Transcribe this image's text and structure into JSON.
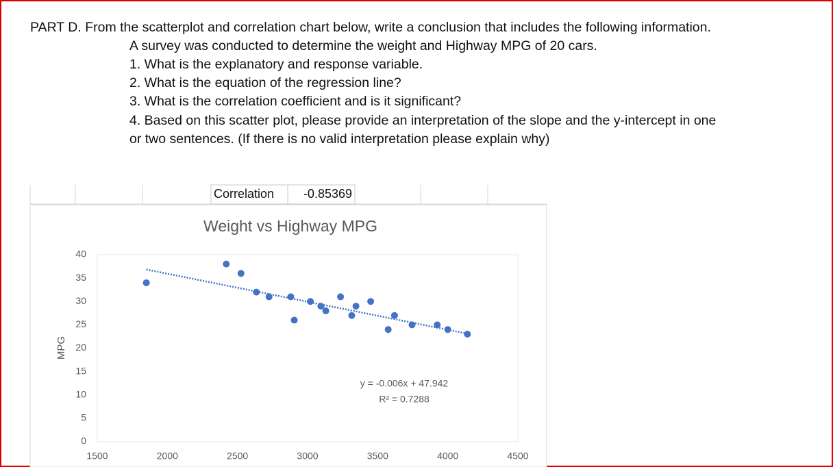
{
  "document": {
    "heading": "PART D. From the scatterplot and correlation chart below, write a conclusion that includes the following information.",
    "lines": [
      "A survey was conducted to determine the weight and Highway MPG of 20 cars.",
      "1. What is the explanatory and response variable.",
      "2. What is the equation of the regression line?",
      "3. What is the correlation coefficient and is it significant?",
      "4. Based on this scatter plot, please provide an interpretation of the slope and the y-intercept in one",
      "or two sentences. (If there is no valid interpretation please explain why)"
    ]
  },
  "correlation": {
    "label": "Correlation",
    "value": -0.85369
  },
  "chart_data": {
    "type": "scatter",
    "title": "Weight vs Highway MPG",
    "y_label": "MPG",
    "x": [
      1850,
      2420,
      2525,
      2635,
      2725,
      2880,
      2905,
      3020,
      3095,
      3130,
      3235,
      3315,
      3345,
      3450,
      3575,
      3620,
      3745,
      3925,
      4000,
      4140
    ],
    "values": [
      34,
      38,
      36,
      32,
      31,
      31,
      26,
      30,
      29,
      28,
      31,
      27,
      29,
      30,
      24,
      27,
      25,
      25,
      24,
      23
    ],
    "color": "#4472c4",
    "xlim": [
      1500,
      4500
    ],
    "xticks": [
      1500,
      2000,
      2500,
      3000,
      3500,
      4000,
      4500
    ],
    "ylim": [
      0,
      40
    ],
    "yticks": [
      0,
      5,
      10,
      15,
      20,
      25,
      30,
      35,
      40
    ],
    "grid": false,
    "trendline": {
      "slope": -0.006,
      "intercept": 47.942,
      "color": "#4472c4",
      "equation": "y = -0.006x + 47.942",
      "r_squared_label": "R² = 0.7288"
    }
  }
}
